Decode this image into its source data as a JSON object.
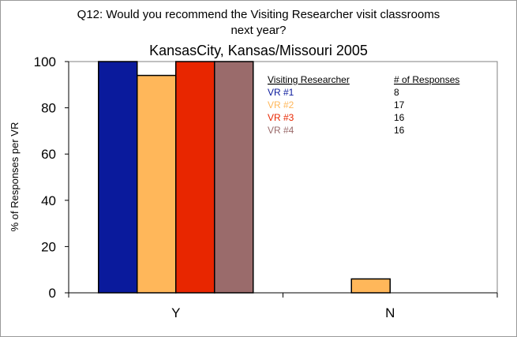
{
  "chart_data": {
    "type": "bar",
    "title": "Q12: Would you recommend the Visiting Researcher visit classrooms next year?",
    "title_lines": [
      "Q12: Would you recommend the Visiting Researcher visit classrooms",
      "next year?"
    ],
    "subtitle": "KansasCity, Kansas/Missouri 2005",
    "xlabel": "",
    "ylabel": "% of Responses per VR",
    "ylim": [
      0,
      100
    ],
    "yticks": [
      0,
      20,
      40,
      60,
      80,
      100
    ],
    "categories": [
      "Y",
      "N"
    ],
    "series": [
      {
        "name": "VR #1",
        "color": "#0a1a9c",
        "values": [
          100,
          0
        ]
      },
      {
        "name": "VR #2",
        "color": "#ffb75a",
        "values": [
          94,
          6
        ]
      },
      {
        "name": "VR #3",
        "color": "#e82600",
        "values": [
          100,
          0
        ]
      },
      {
        "name": "VR #4",
        "color": "#9a6b6b",
        "values": [
          100,
          0
        ]
      }
    ],
    "legend": {
      "placement": "top-right",
      "header_name": "Visiting Researcher",
      "header_count": "# of Responses",
      "counts": [
        "8",
        "17",
        "16",
        "16"
      ]
    },
    "grid": false
  }
}
